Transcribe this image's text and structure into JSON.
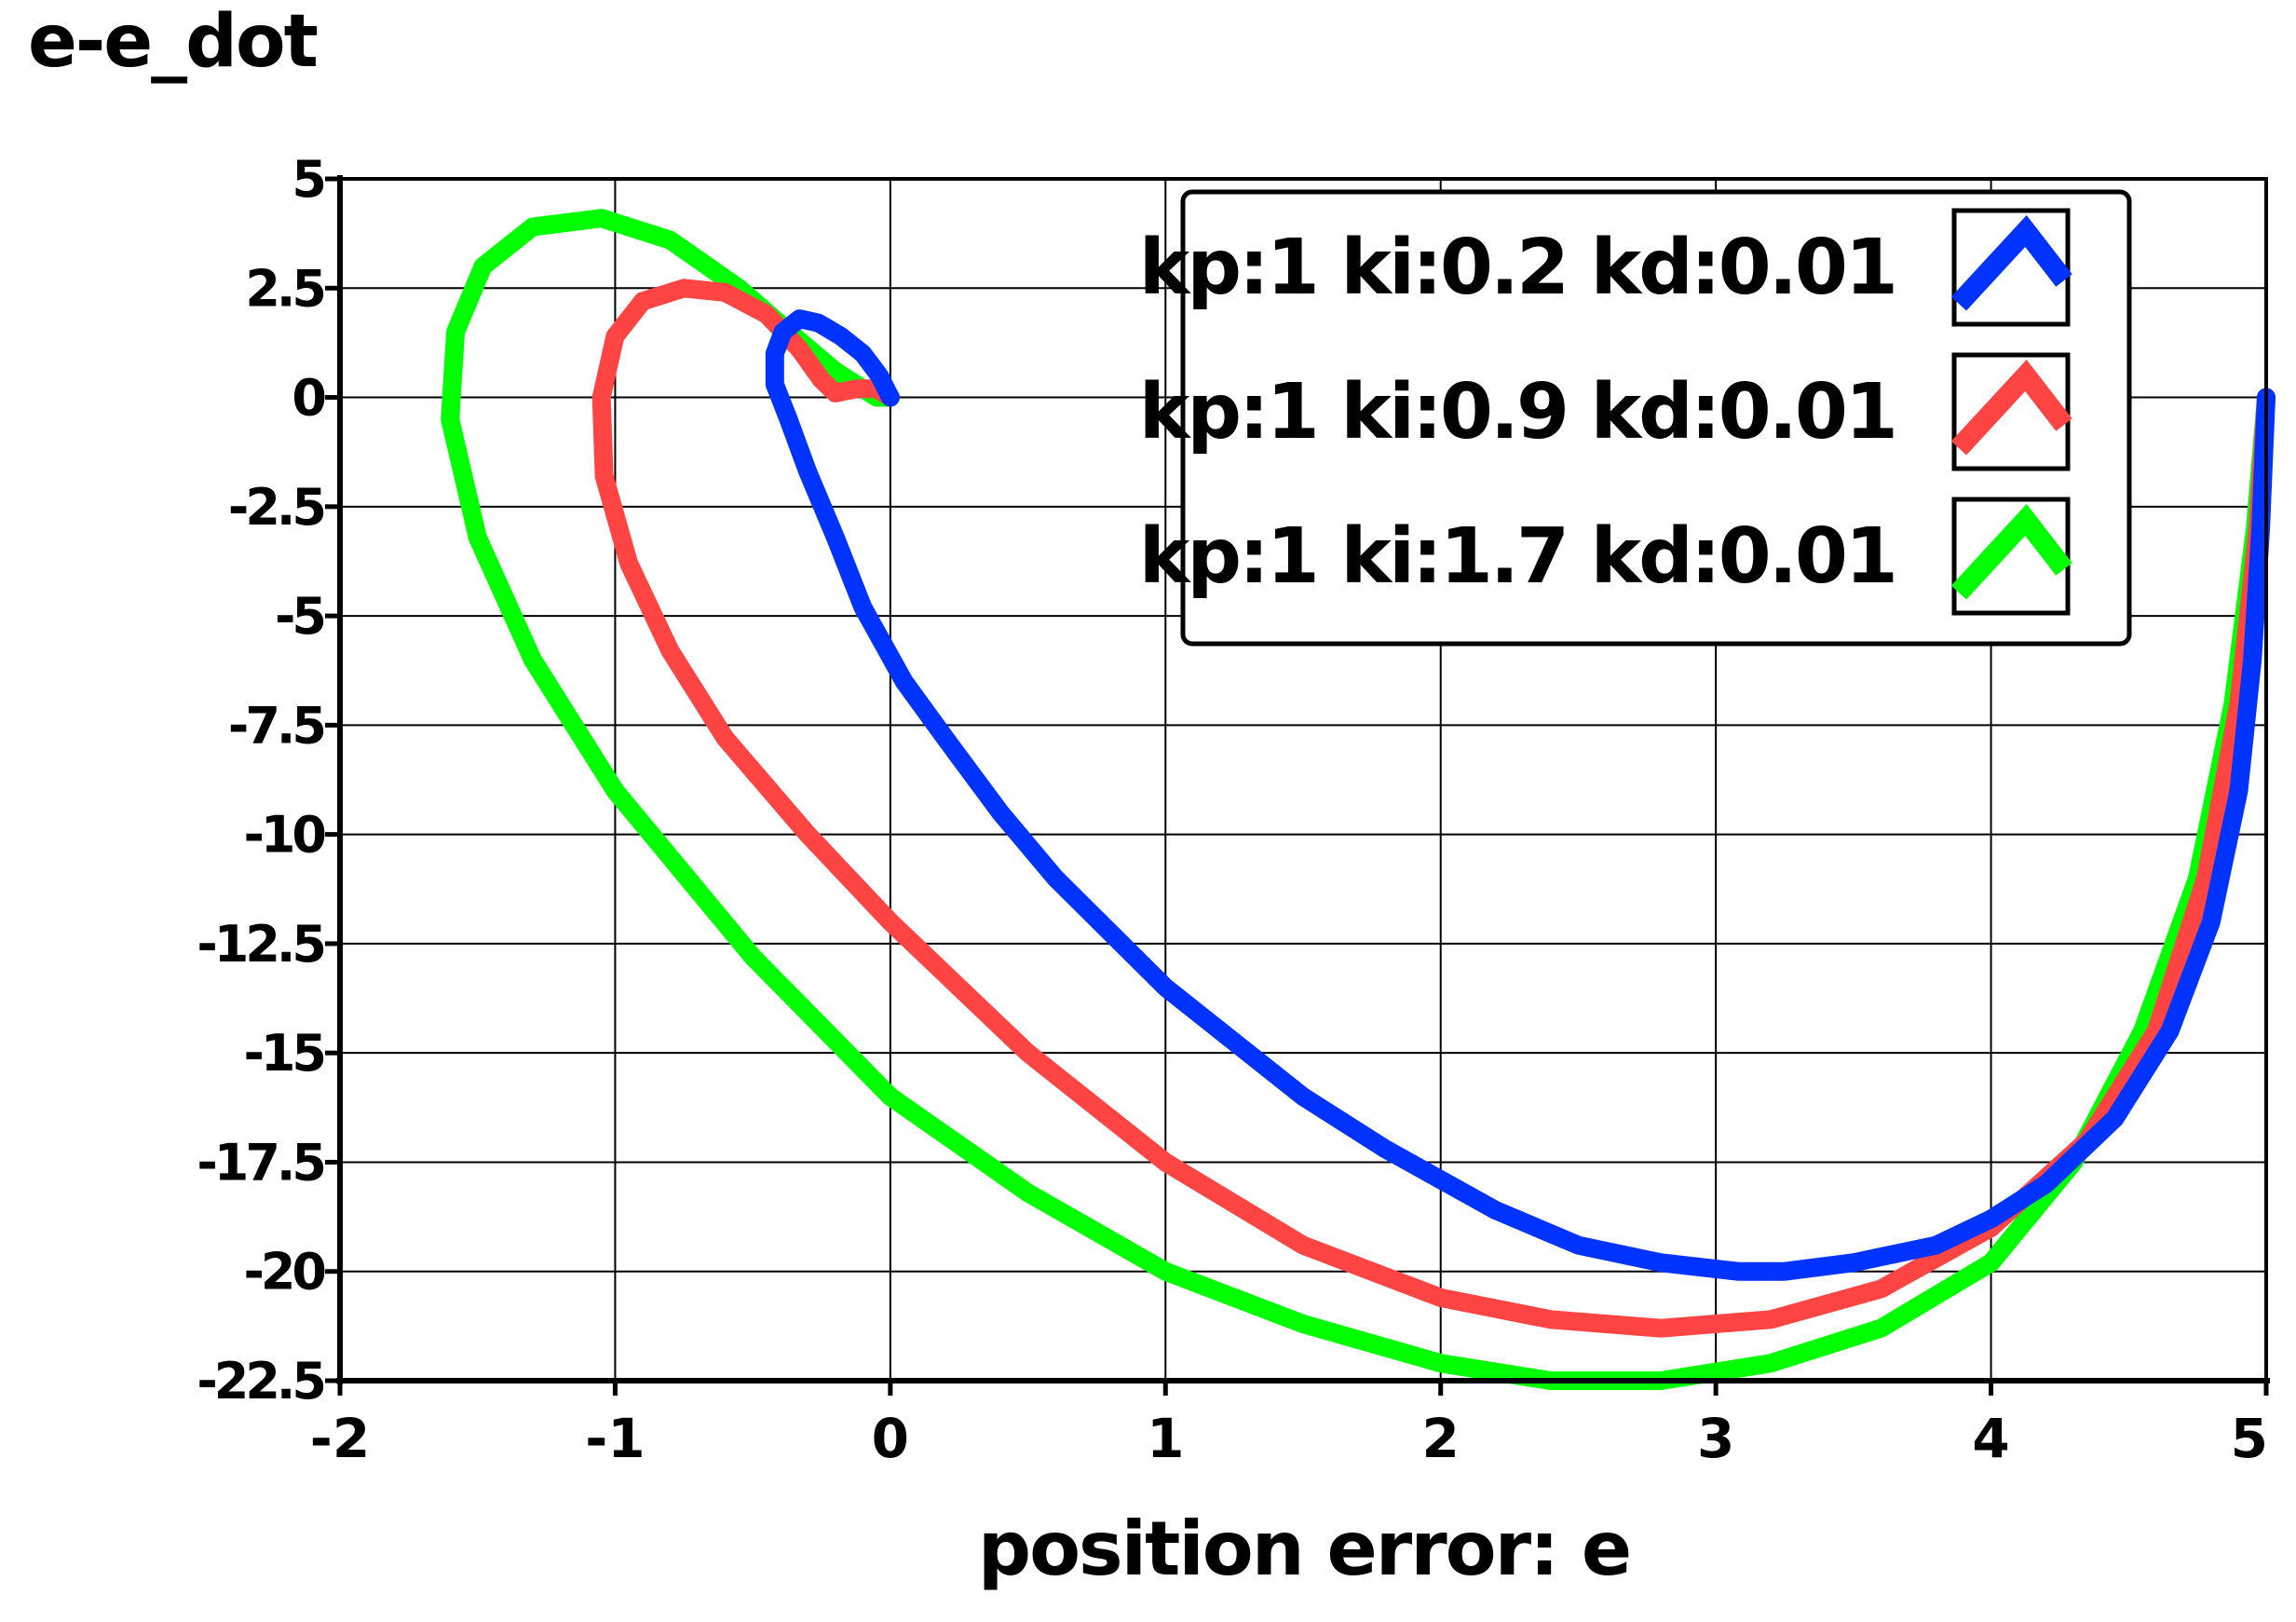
{
  "chart_data": {
    "type": "line",
    "title": "e-e_dot",
    "xlabel": "position error: e",
    "ylabel": "",
    "xlim": [
      -2,
      5
    ],
    "ylim": [
      -22.5,
      5
    ],
    "x_ticks": [
      "-2",
      "-1",
      "0",
      "1",
      "2",
      "3",
      "4",
      "5"
    ],
    "y_ticks": [
      "5",
      "2.5",
      "0",
      "-2.5",
      "-5",
      "-7.5",
      "-10",
      "-12.5",
      "-15",
      "-17.5",
      "-20",
      "-22.5"
    ],
    "grid": true,
    "legend_position": "top-right",
    "series": [
      {
        "name": "kp:1 ki:0.2 kd:0.01",
        "color": "#0033ff",
        "x": [
          5.0,
          4.98,
          4.95,
          4.9,
          4.8,
          4.65,
          4.45,
          4.2,
          4.0,
          3.8,
          3.5,
          3.25,
          3.08,
          2.8,
          2.5,
          2.2,
          1.8,
          1.5,
          1.0,
          0.6,
          0.4,
          0.2,
          0.05,
          -0.1,
          -0.2,
          -0.3,
          -0.37,
          -0.42,
          -0.42,
          -0.39,
          -0.33,
          -0.26,
          -0.18,
          -0.1,
          -0.04,
          0.0
        ],
        "y": [
          0.0,
          -3.0,
          -6.0,
          -9.0,
          -12.0,
          -14.5,
          -16.5,
          -18.0,
          -18.8,
          -19.4,
          -19.8,
          -20.0,
          -20.0,
          -19.8,
          -19.4,
          -18.6,
          -17.2,
          -16.0,
          -13.5,
          -11.0,
          -9.5,
          -7.8,
          -6.5,
          -4.8,
          -3.2,
          -1.7,
          -0.5,
          0.3,
          1.0,
          1.5,
          1.8,
          1.7,
          1.4,
          1.0,
          0.5,
          0.0
        ]
      },
      {
        "name": "kp:1 ki:0.9 kd:0.01",
        "color": "#ff4444",
        "x": [
          5.0,
          4.97,
          4.9,
          4.78,
          4.6,
          4.35,
          4.0,
          3.6,
          3.2,
          2.8,
          2.4,
          2.0,
          1.5,
          1.0,
          0.5,
          0.0,
          -0.3,
          -0.6,
          -0.8,
          -0.95,
          -1.04,
          -1.05,
          -1.0,
          -0.9,
          -0.75,
          -0.6,
          -0.45,
          -0.33,
          -0.25,
          -0.2,
          -0.12,
          -0.05,
          0.0
        ],
        "y": [
          0.0,
          -3.0,
          -7.0,
          -11.0,
          -14.5,
          -17.0,
          -19.0,
          -20.4,
          -21.1,
          -21.3,
          -21.1,
          -20.6,
          -19.4,
          -17.5,
          -15.0,
          -12.0,
          -10.0,
          -7.8,
          -5.8,
          -3.8,
          -1.8,
          0.0,
          1.4,
          2.2,
          2.5,
          2.4,
          1.9,
          1.1,
          0.4,
          0.1,
          0.2,
          0.2,
          0.0
        ]
      },
      {
        "name": "kp:1 ki:1.7 kd:0.01",
        "color": "#00ff00",
        "x": [
          5.0,
          4.96,
          4.88,
          4.75,
          4.55,
          4.3,
          4.0,
          3.6,
          3.2,
          2.8,
          2.4,
          2.0,
          1.5,
          1.0,
          0.5,
          0.0,
          -0.5,
          -1.0,
          -1.3,
          -1.5,
          -1.6,
          -1.58,
          -1.48,
          -1.3,
          -1.05,
          -0.8,
          -0.55,
          -0.35,
          -0.2,
          -0.1,
          -0.05,
          0.0
        ],
        "y": [
          0.0,
          -3.0,
          -7.0,
          -11.0,
          -14.5,
          -17.5,
          -19.8,
          -21.3,
          -22.1,
          -22.5,
          -22.5,
          -22.1,
          -21.2,
          -20.0,
          -18.2,
          -16.0,
          -12.8,
          -9.0,
          -6.0,
          -3.2,
          -0.5,
          1.5,
          3.0,
          3.9,
          4.1,
          3.6,
          2.5,
          1.4,
          0.6,
          0.2,
          0.0,
          0.0
        ]
      }
    ]
  }
}
